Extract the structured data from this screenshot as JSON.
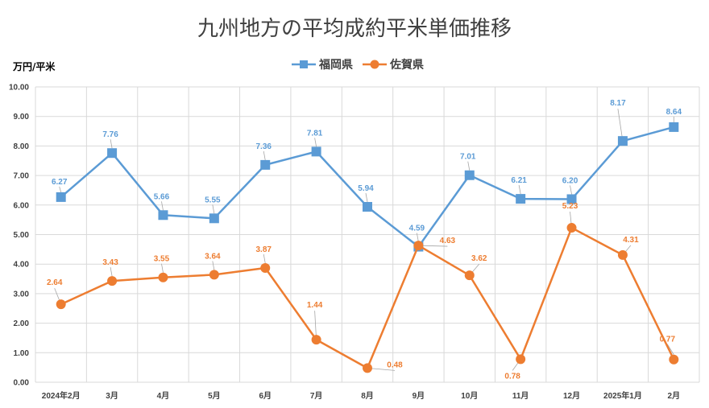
{
  "chart_data": {
    "type": "line",
    "title": "九州地方の平均成約平米単価推移",
    "ylabel": "万円/平米",
    "xlabel": "",
    "categories": [
      "2024年2月",
      "3月",
      "4月",
      "5月",
      "6月",
      "7月",
      "8月",
      "9月",
      "10月",
      "11月",
      "12月",
      "2025年1月",
      "2月"
    ],
    "ylim": [
      0,
      10
    ],
    "yticks": [
      "0.00",
      "1.00",
      "2.00",
      "3.00",
      "4.00",
      "5.00",
      "6.00",
      "7.00",
      "8.00",
      "9.00",
      "10.00"
    ],
    "grid": true,
    "legend_position": "top",
    "series": [
      {
        "name": "福岡県",
        "color": "#5b9bd5",
        "marker": "square",
        "values": [
          6.27,
          7.76,
          5.66,
          5.55,
          7.36,
          7.81,
          5.94,
          4.59,
          7.01,
          6.21,
          6.2,
          8.17,
          8.64
        ],
        "labels": [
          "6.27",
          "7.76",
          "5.66",
          "5.55",
          "7.36",
          "7.81",
          "5.94",
          "4.59",
          "7.01",
          "6.21",
          "6.20",
          "8.17",
          "8.64"
        ]
      },
      {
        "name": "佐賀県",
        "color": "#ed7d31",
        "marker": "circle",
        "values": [
          2.64,
          3.43,
          3.55,
          3.64,
          3.87,
          1.44,
          0.48,
          4.63,
          3.62,
          0.78,
          5.23,
          4.31,
          0.77
        ],
        "labels": [
          "2.64",
          "3.43",
          "3.55",
          "3.64",
          "3.87",
          "1.44",
          "0.48",
          "4.63",
          "3.62",
          "0.78",
          "5.23",
          "4.31",
          "0.77"
        ]
      }
    ]
  }
}
